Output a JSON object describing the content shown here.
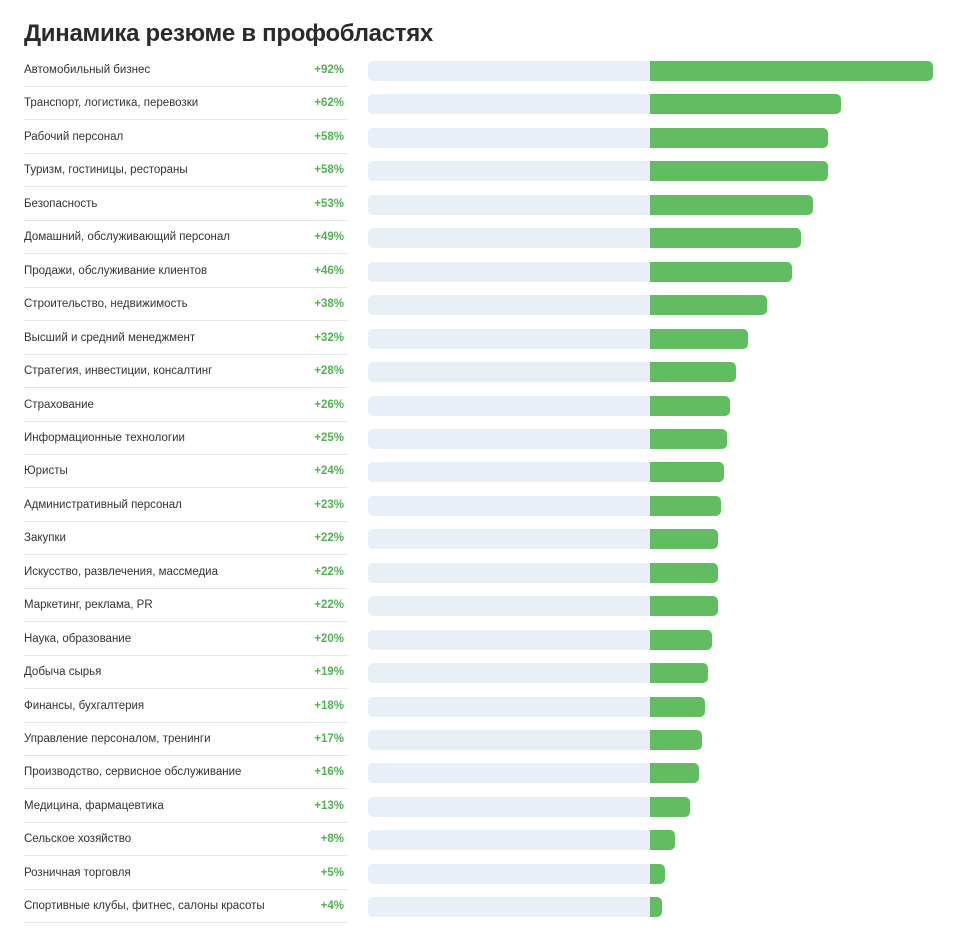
{
  "colors": {
    "bar": "#62bc62",
    "track": "#e9eff6",
    "value_text": "#53b153"
  },
  "chart_data": {
    "type": "bar",
    "orientation": "horizontal",
    "title": "Динамика резюме в профобластях",
    "xlabel": "",
    "ylabel": "",
    "xlim": [
      0,
      92
    ],
    "grid": false,
    "legend": "none",
    "categories": [
      "Автомобильный бизнес",
      "Транспорт, логистика, перевозки",
      "Рабочий персонал",
      "Туризм, гостиницы, рестораны",
      "Безопасность",
      "Домашний, обслуживающий персонал",
      "Продажи, обслуживание клиентов",
      "Строительство, недвижимость",
      "Высший и средний менеджмент",
      "Стратегия, инвестиции, консалтинг",
      "Страхование",
      "Информационные технологии",
      "Юристы",
      "Административный персонал",
      "Закупки",
      "Искусство, развлечения, массмедиа",
      "Маркетинг, реклама, PR",
      "Наука, образование",
      "Добыча сырья",
      "Финансы, бухгалтерия",
      "Управление персоналом, тренинги",
      "Производство, сервисное обслуживание",
      "Медицина, фармацевтика",
      "Сельское хозяйство",
      "Розничная торговля",
      "Спортивные клубы, фитнес, салоны красоты"
    ],
    "values": [
      92,
      62,
      58,
      58,
      53,
      49,
      46,
      38,
      32,
      28,
      26,
      25,
      24,
      23,
      22,
      22,
      22,
      20,
      19,
      18,
      17,
      16,
      13,
      8,
      5,
      4
    ],
    "value_labels": [
      "+92%",
      "+62%",
      "+58%",
      "+58%",
      "+53%",
      "+49%",
      "+46%",
      "+38%",
      "+32%",
      "+28%",
      "+26%",
      "+25%",
      "+24%",
      "+23%",
      "+22%",
      "+22%",
      "+22%",
      "+20%",
      "+19%",
      "+18%",
      "+17%",
      "+16%",
      "+13%",
      "+8%",
      "+5%",
      "+4%"
    ]
  }
}
